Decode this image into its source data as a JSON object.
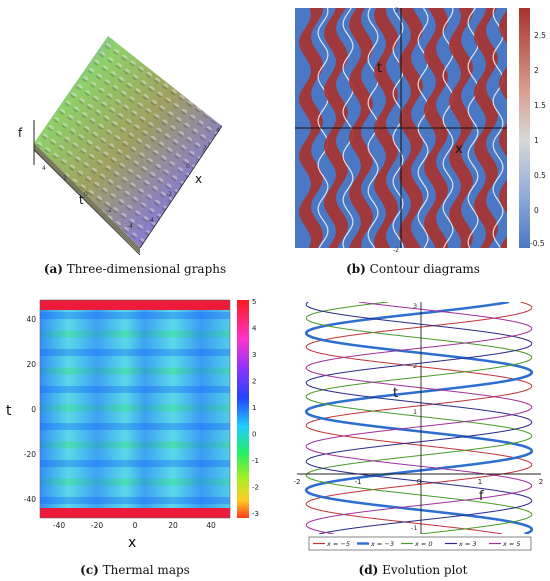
{
  "panels": {
    "a": {
      "label": "(a)",
      "caption": "Three-dimensional graphs",
      "axis_f": "f",
      "axis_t": "t",
      "axis_x": "x",
      "t_ticks": [
        "4",
        "2",
        "0",
        "-2",
        "-4"
      ],
      "x_ticks": [
        "-4",
        "-2",
        "0",
        "2",
        "4"
      ]
    },
    "b": {
      "label": "(b)",
      "caption": "Contour diagrams",
      "axis_t": "t",
      "axis_x": "x",
      "top_tick": "2",
      "bottom_tick": "-2",
      "colorbar_ticks": [
        "2.5",
        "2",
        "1.5",
        "1",
        "0.5",
        "0",
        "-0.5"
      ]
    },
    "c": {
      "label": "(c)",
      "caption": "Thermal maps",
      "axis_t": "t",
      "axis_x": "x",
      "colorbar_ticks": [
        "5",
        "4",
        "3",
        "2",
        "1",
        "0",
        "-1",
        "-2",
        "-3"
      ]
    },
    "d": {
      "label": "(d)",
      "caption": "Evolution plot",
      "axis_t": "t",
      "axis_f": "f",
      "x_ticks": [
        "-2",
        "-1",
        "0",
        "1",
        "2"
      ],
      "t_ticks": [
        "2",
        "1",
        "-1"
      ],
      "top_tick": "3"
    }
  },
  "colors": {
    "contour_red": "#a8322e",
    "contour_blue": "#4a78c4",
    "line_red": "#c0343a",
    "line_blue": "#2d6fd0",
    "line_green": "#4a9a2a",
    "line_navy": "#2a2a8a",
    "line_purple": "#a0309a"
  },
  "chart_data": [
    {
      "panel": "a",
      "type": "surface",
      "xlabel": "x",
      "ylabel": "t",
      "zlabel": "f",
      "x_range": [
        -4,
        4
      ],
      "t_range": [
        -4,
        4
      ]
    },
    {
      "panel": "b",
      "type": "heatmap",
      "xlabel": "x",
      "ylabel": "t",
      "colorbar_range": [
        -0.5,
        2.5
      ]
    },
    {
      "panel": "c",
      "type": "heatmap",
      "xlabel": "x",
      "ylabel": "t",
      "x_ticks": [
        -40,
        -20,
        0,
        20,
        40
      ],
      "y_ticks": [
        -40,
        -20,
        0,
        20,
        40
      ],
      "colorbar_range": [
        -3,
        5
      ]
    },
    {
      "panel": "d",
      "type": "line",
      "xlabel": "f",
      "ylabel": "t",
      "xlim": [
        -2,
        2
      ],
      "series": [
        {
          "name": "x = −5",
          "color": "#c0343a",
          "phase": 0.0
        },
        {
          "name": "x = −3",
          "color": "#2d6fd0",
          "phase": 1.1
        },
        {
          "name": "x = 0",
          "color": "#4a9a2a",
          "phase": 2.3
        },
        {
          "name": "x = 3",
          "color": "#2a2a8a",
          "phase": 3.4
        },
        {
          "name": "x = 5",
          "color": "#a0309a",
          "phase": 4.6
        }
      ]
    }
  ]
}
